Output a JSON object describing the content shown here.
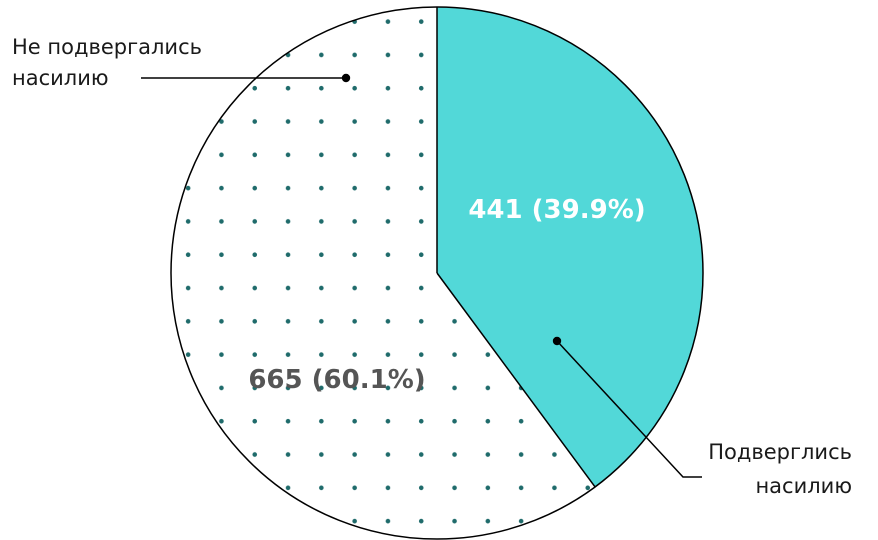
{
  "chart_data": {
    "type": "pie",
    "slices": [
      {
        "label_lines": [
          "Подверглись",
          "насилию"
        ],
        "value": 441,
        "percent": 39.9,
        "value_label": "441 (39.9%)",
        "fill": "#52d8d8",
        "pattern": "solid",
        "value_label_color": "#ffffff"
      },
      {
        "label_lines": [
          "Не подвергались",
          "насилию"
        ],
        "value": 665,
        "percent": 60.1,
        "value_label": "665 (60.1%)",
        "fill": "#ffffff",
        "pattern": "dots",
        "dot_color": "#1f6b6b",
        "value_label_color": "#555555"
      }
    ],
    "start_angle": "12 o'clock",
    "direction": "clockwise",
    "outline_color": "#000000"
  }
}
